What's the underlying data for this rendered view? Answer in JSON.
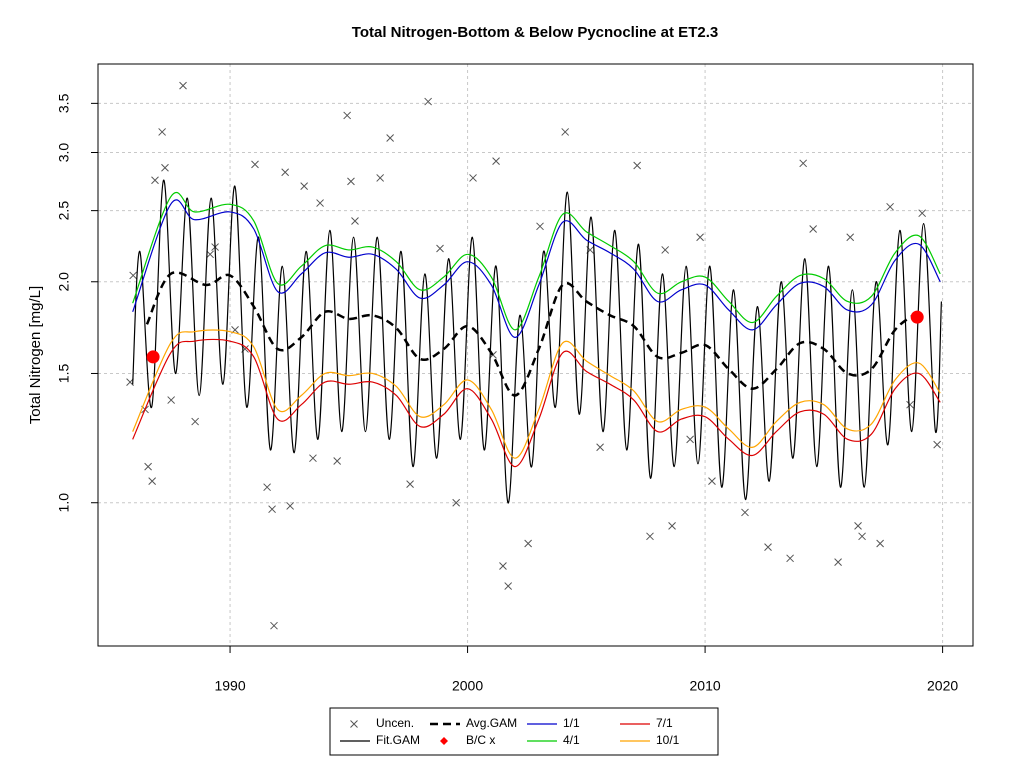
{
  "chart_data": {
    "type": "line",
    "title": "Total Nitrogen-Bottom & Below Pycnocline at ET2.3",
    "y_label": "Total Nitrogen [mg/L]",
    "xlim": [
      1984.44,
      2021.28
    ],
    "ylim": [
      0.638,
      3.96
    ],
    "log_y": true,
    "grid": true,
    "legend": "bottom",
    "xticks": [
      1990,
      2000,
      2010,
      2020
    ],
    "yticks": [
      {
        "value": 1.0,
        "label": "1.0"
      },
      {
        "value": 1.5,
        "label": "1.5"
      },
      {
        "value": 2.0,
        "label": "2.0"
      },
      {
        "value": 2.5,
        "label": "2.5"
      },
      {
        "value": 3.0,
        "label": "3.0"
      },
      {
        "value": 3.5,
        "label": "3.5"
      }
    ],
    "series": [
      {
        "name": "Uncen.",
        "color": "#555555",
        "style": "points",
        "marker": "x",
        "x": [
          1985.79,
          1985.92,
          1986.42,
          1986.55,
          1986.72,
          1986.84,
          1987.14,
          1987.26,
          1987.52,
          1988.02,
          1988.53,
          1989.16,
          1990.21,
          1991.05,
          1991.56,
          1991.77,
          1991.85,
          1992.32,
          1992.53,
          1993.12,
          1993.49,
          1994.51,
          1994.93,
          1995.09,
          1996.32,
          1996.74,
          1997.58,
          1998.34,
          1999.52,
          2000.23,
          2001.2,
          2001.49,
          2001.71,
          2002.55,
          2004.11,
          2005.16,
          2005.58,
          2007.14,
          2007.68,
          2008.61,
          2009.79,
          2010.29,
          2011.68,
          2012.65,
          2013.58,
          2014.13,
          2014.55,
          2015.6,
          2016.44,
          2016.61,
          2017.37,
          2017.79,
          2018.63,
          2019.14,
          2019.77,
          1989.37,
          1990.63,
          1998.84,
          2003.05,
          2008.32,
          2016.11,
          2001.07,
          2009.37,
          1993.79,
          1995.26
        ],
        "values": [
          1.46,
          2.04,
          1.34,
          1.12,
          1.07,
          2.75,
          3.2,
          2.86,
          1.38,
          3.7,
          1.29,
          2.18,
          1.72,
          2.89,
          1.05,
          0.98,
          0.68,
          2.82,
          0.99,
          2.7,
          1.15,
          1.14,
          3.37,
          2.74,
          2.77,
          3.14,
          1.06,
          3.52,
          1.0,
          2.77,
          2.92,
          0.82,
          0.77,
          0.88,
          3.2,
          2.21,
          1.19,
          2.88,
          0.9,
          0.93,
          2.3,
          1.07,
          0.97,
          0.87,
          0.84,
          2.9,
          2.36,
          0.83,
          0.93,
          0.9,
          0.88,
          2.53,
          1.36,
          2.48,
          1.2,
          2.23,
          1.62,
          2.22,
          2.38,
          2.21,
          2.3,
          1.59,
          1.22,
          2.56,
          2.42
        ]
      },
      {
        "name": "Fit.GAM",
        "color": "#000000",
        "style": "line",
        "x": [
          1985.9,
          1986.2,
          1986.7,
          1987.2,
          1987.7,
          1988.2,
          1988.7,
          1989.2,
          1989.7,
          1990.2,
          1990.7,
          1991.2,
          1991.7,
          1992.2,
          1992.7,
          1993.2,
          1993.7,
          1994.2,
          1994.7,
          1995.2,
          1995.7,
          1996.2,
          1996.7,
          1997.2,
          1997.7,
          1998.2,
          1998.7,
          1999.2,
          1999.7,
          2000.2,
          2000.7,
          2001.2,
          2001.7,
          2002.2,
          2002.7,
          2003.2,
          2003.7,
          2004.2,
          2004.7,
          2005.2,
          2005.7,
          2006.2,
          2006.7,
          2007.2,
          2007.7,
          2008.2,
          2008.7,
          2009.2,
          2009.7,
          2010.2,
          2010.7,
          2011.2,
          2011.7,
          2012.2,
          2012.7,
          2013.2,
          2013.7,
          2014.2,
          2014.7,
          2015.2,
          2015.7,
          2016.2,
          2016.7,
          2017.2,
          2017.7,
          2018.2,
          2018.7,
          2019.2,
          2019.7,
          2019.95
        ],
        "values": [
          1.45,
          2.2,
          1.35,
          2.75,
          1.5,
          2.6,
          1.4,
          2.6,
          1.45,
          2.7,
          1.35,
          2.3,
          1.18,
          2.1,
          1.17,
          2.2,
          1.22,
          2.35,
          1.25,
          2.3,
          1.25,
          2.3,
          1.22,
          2.2,
          1.12,
          2.05,
          1.15,
          2.15,
          1.22,
          2.3,
          1.18,
          2.1,
          1.0,
          1.8,
          1.12,
          2.2,
          1.35,
          2.65,
          1.32,
          2.45,
          1.25,
          2.35,
          1.18,
          2.25,
          1.08,
          2.05,
          1.12,
          2.1,
          1.13,
          2.1,
          1.05,
          1.95,
          1.01,
          1.85,
          1.07,
          2.0,
          1.15,
          2.15,
          1.12,
          2.1,
          1.05,
          1.95,
          1.05,
          2.0,
          1.2,
          2.35,
          1.25,
          2.4,
          1.25,
          1.88
        ]
      },
      {
        "name": "Avg.GAM",
        "color": "#000000",
        "style": "dashed",
        "x": [
          1986.5,
          1987.5,
          1989,
          1990,
          1991,
          1992,
          1993,
          1994,
          1995,
          1996,
          1997,
          1998,
          1999,
          2000,
          2001,
          2002,
          2003,
          2004,
          2005,
          2006,
          2007,
          2008,
          2009,
          2010,
          2011,
          2012,
          2013,
          2014,
          2015,
          2016,
          2017,
          2018,
          2019
        ],
        "values": [
          1.75,
          2.05,
          1.98,
          2.04,
          1.85,
          1.62,
          1.68,
          1.82,
          1.78,
          1.8,
          1.73,
          1.57,
          1.62,
          1.74,
          1.6,
          1.4,
          1.62,
          1.98,
          1.88,
          1.8,
          1.74,
          1.58,
          1.6,
          1.64,
          1.52,
          1.43,
          1.52,
          1.65,
          1.62,
          1.5,
          1.52,
          1.72,
          1.82
        ]
      },
      {
        "name": "B/C x",
        "color": "#ff0000",
        "style": "points",
        "marker": "circle",
        "x": [
          1986.76,
          2018.93
        ],
        "values": [
          1.58,
          1.79
        ]
      },
      {
        "name": "1/1",
        "color": "#0000cc",
        "style": "line",
        "x": [
          1985.9,
          1987.5,
          1988.5,
          1990,
          1991,
          1992,
          1993,
          1994,
          1995,
          1996,
          1997,
          1998,
          1999,
          2000,
          2001,
          2002,
          2003,
          2004,
          2005,
          2006,
          2007,
          2008,
          2009,
          2010,
          2011,
          2012,
          2013,
          2014,
          2015,
          2016,
          2017,
          2018,
          2019,
          2019.9
        ],
        "values": [
          1.82,
          2.55,
          2.43,
          2.49,
          2.36,
          1.94,
          2.05,
          2.19,
          2.16,
          2.18,
          2.08,
          1.9,
          1.98,
          2.13,
          1.98,
          1.68,
          1.98,
          2.41,
          2.28,
          2.19,
          2.08,
          1.88,
          1.95,
          1.98,
          1.83,
          1.72,
          1.86,
          1.99,
          1.97,
          1.83,
          1.86,
          2.14,
          2.25,
          2.0
        ]
      },
      {
        "name": "4/1",
        "color": "#00cc00",
        "style": "line",
        "x": [
          1985.9,
          1987.5,
          1988.5,
          1990,
          1991,
          1992,
          1993,
          1994,
          1995,
          1996,
          1997,
          1998,
          1999,
          2000,
          2001,
          2002,
          2003,
          2004,
          2005,
          2006,
          2007,
          2008,
          2009,
          2010,
          2011,
          2012,
          2013,
          2014,
          2015,
          2016,
          2017,
          2018,
          2019,
          2019.9
        ],
        "values": [
          1.87,
          2.61,
          2.49,
          2.55,
          2.42,
          1.99,
          2.1,
          2.24,
          2.21,
          2.23,
          2.13,
          1.95,
          2.03,
          2.18,
          2.03,
          1.72,
          2.03,
          2.47,
          2.34,
          2.24,
          2.13,
          1.93,
          2.0,
          2.03,
          1.88,
          1.76,
          1.91,
          2.04,
          2.02,
          1.88,
          1.91,
          2.19,
          2.31,
          2.05
        ]
      },
      {
        "name": "7/1",
        "color": "#dd0000",
        "style": "line",
        "x": [
          1985.9,
          1987.5,
          1988.5,
          1990,
          1991,
          1992,
          1993,
          1994,
          1995,
          1996,
          1997,
          1998,
          1999,
          2000,
          2001,
          2002,
          2003,
          2004,
          2005,
          2006,
          2007,
          2008,
          2009,
          2010,
          2011,
          2012,
          2013,
          2014,
          2015,
          2016,
          2017,
          2018,
          2019,
          2019.9
        ],
        "values": [
          1.22,
          1.6,
          1.66,
          1.66,
          1.58,
          1.3,
          1.36,
          1.46,
          1.45,
          1.46,
          1.4,
          1.27,
          1.32,
          1.43,
          1.3,
          1.12,
          1.3,
          1.6,
          1.51,
          1.45,
          1.38,
          1.25,
          1.3,
          1.31,
          1.22,
          1.16,
          1.25,
          1.33,
          1.32,
          1.22,
          1.24,
          1.43,
          1.5,
          1.37
        ]
      },
      {
        "name": "10/1",
        "color": "#ffa500",
        "style": "line",
        "x": [
          1985.9,
          1987.5,
          1988.5,
          1990,
          1991,
          1992,
          1993,
          1994,
          1995,
          1996,
          1997,
          1998,
          1999,
          2000,
          2001,
          2002,
          2003,
          2004,
          2005,
          2006,
          2007,
          2008,
          2009,
          2010,
          2011,
          2012,
          2013,
          2014,
          2015,
          2016,
          2017,
          2018,
          2019,
          2019.9
        ],
        "values": [
          1.25,
          1.65,
          1.71,
          1.71,
          1.63,
          1.34,
          1.4,
          1.5,
          1.49,
          1.5,
          1.44,
          1.31,
          1.36,
          1.47,
          1.34,
          1.15,
          1.34,
          1.65,
          1.56,
          1.49,
          1.42,
          1.29,
          1.34,
          1.35,
          1.26,
          1.19,
          1.29,
          1.37,
          1.36,
          1.26,
          1.28,
          1.47,
          1.55,
          1.41
        ]
      }
    ]
  }
}
